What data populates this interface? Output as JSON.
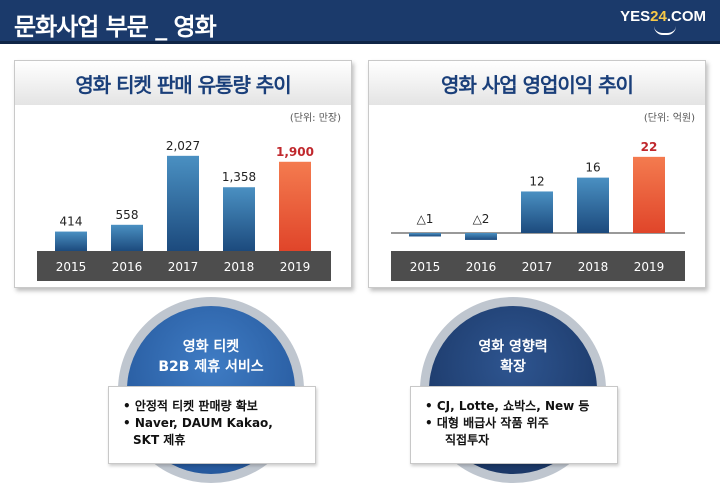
{
  "header": {
    "title": "문화사업 부문 _ 영화",
    "logo_text_a": "YES",
    "logo_text_b": "24",
    "logo_text_c": ".COM"
  },
  "chart_data": [
    {
      "type": "bar",
      "title": "영화 티켓 판매 유통량 추이",
      "unit_label": "(단위: 만장)",
      "categories": [
        "2015",
        "2016",
        "2017",
        "2018",
        "2019"
      ],
      "values": [
        414,
        558,
        2027,
        1358,
        1900
      ],
      "value_labels": [
        "414",
        "558",
        "2,027",
        "1,358",
        "1,900"
      ],
      "highlight_index": 4,
      "ylim": [
        0,
        2300
      ]
    },
    {
      "type": "bar",
      "title": "영화 사업 영업이익 추이",
      "unit_label": "(단위: 억원)",
      "categories": [
        "2015",
        "2016",
        "2017",
        "2018",
        "2019"
      ],
      "values": [
        -1,
        -2,
        12,
        16,
        22
      ],
      "value_labels": [
        "△1",
        "△2",
        "12",
        "16",
        "22"
      ],
      "highlight_index": 4,
      "ylim": [
        -3,
        26
      ]
    }
  ],
  "circles": [
    {
      "line1": "영화 티켓",
      "line2": "B2B 제휴 서비스"
    },
    {
      "line1": "영화 영향력",
      "line2": "확장"
    }
  ],
  "boxes": [
    {
      "bullets": [
        "• 안정적 티켓 판매량 확보",
        "• Naver, DAUM Kakao,",
        "SKT 제휴"
      ]
    },
    {
      "bullets": [
        "• CJ, Lotte, 쇼박스, New 등",
        "• 대형 배급사 작품 위주",
        "직접투자"
      ]
    }
  ],
  "colors": {
    "header_bg": "#1b3a6b",
    "bar_blue_top": "#4a90c2",
    "bar_blue_bottom": "#1c4a7d",
    "bar_orange_top": "#f47b4f",
    "bar_orange_bottom": "#e0452a",
    "axis_band": "#4d4d4d",
    "circle_left": "#2a62a8",
    "circle_right": "#1b3a6b",
    "highlight_text": "#c0282d"
  }
}
